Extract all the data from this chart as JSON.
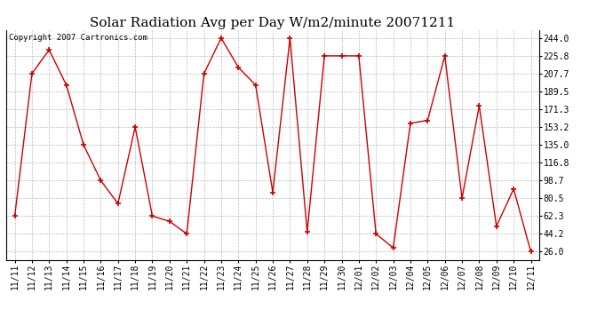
{
  "title": "Solar Radiation Avg per Day W/m2/minute 20071211",
  "copyright": "Copyright 2007 Cartronics.com",
  "labels": [
    "11/11",
    "11/12",
    "11/13",
    "11/14",
    "11/15",
    "11/16",
    "11/17",
    "11/18",
    "11/19",
    "11/20",
    "11/21",
    "11/22",
    "11/23",
    "11/24",
    "11/25",
    "11/26",
    "11/27",
    "11/28",
    "11/29",
    "11/30",
    "12/01",
    "12/02",
    "12/03",
    "12/04",
    "12/05",
    "12/06",
    "12/07",
    "12/08",
    "12/09",
    "12/10",
    "12/11"
  ],
  "values": [
    62.3,
    207.7,
    232.0,
    196.0,
    135.0,
    98.7,
    75.0,
    153.2,
    62.3,
    57.0,
    44.2,
    207.7,
    244.0,
    214.0,
    196.0,
    86.5,
    244.0,
    46.0,
    225.8,
    225.8,
    225.8,
    44.2,
    30.0,
    157.0,
    160.0,
    225.8,
    80.5,
    175.0,
    52.0,
    90.0,
    26.0
  ],
  "yticks": [
    26.0,
    44.2,
    62.3,
    80.5,
    98.7,
    116.8,
    135.0,
    153.2,
    171.3,
    189.5,
    207.7,
    225.8,
    244.0
  ],
  "ymin": 17.8,
  "ymax": 252.2,
  "line_color": "#cc0000",
  "marker_color": "#cc0000",
  "bg_color": "#ffffff",
  "grid_color": "#aaaaaa",
  "title_fontsize": 11,
  "tick_fontsize": 7,
  "copyright_fontsize": 6.5
}
